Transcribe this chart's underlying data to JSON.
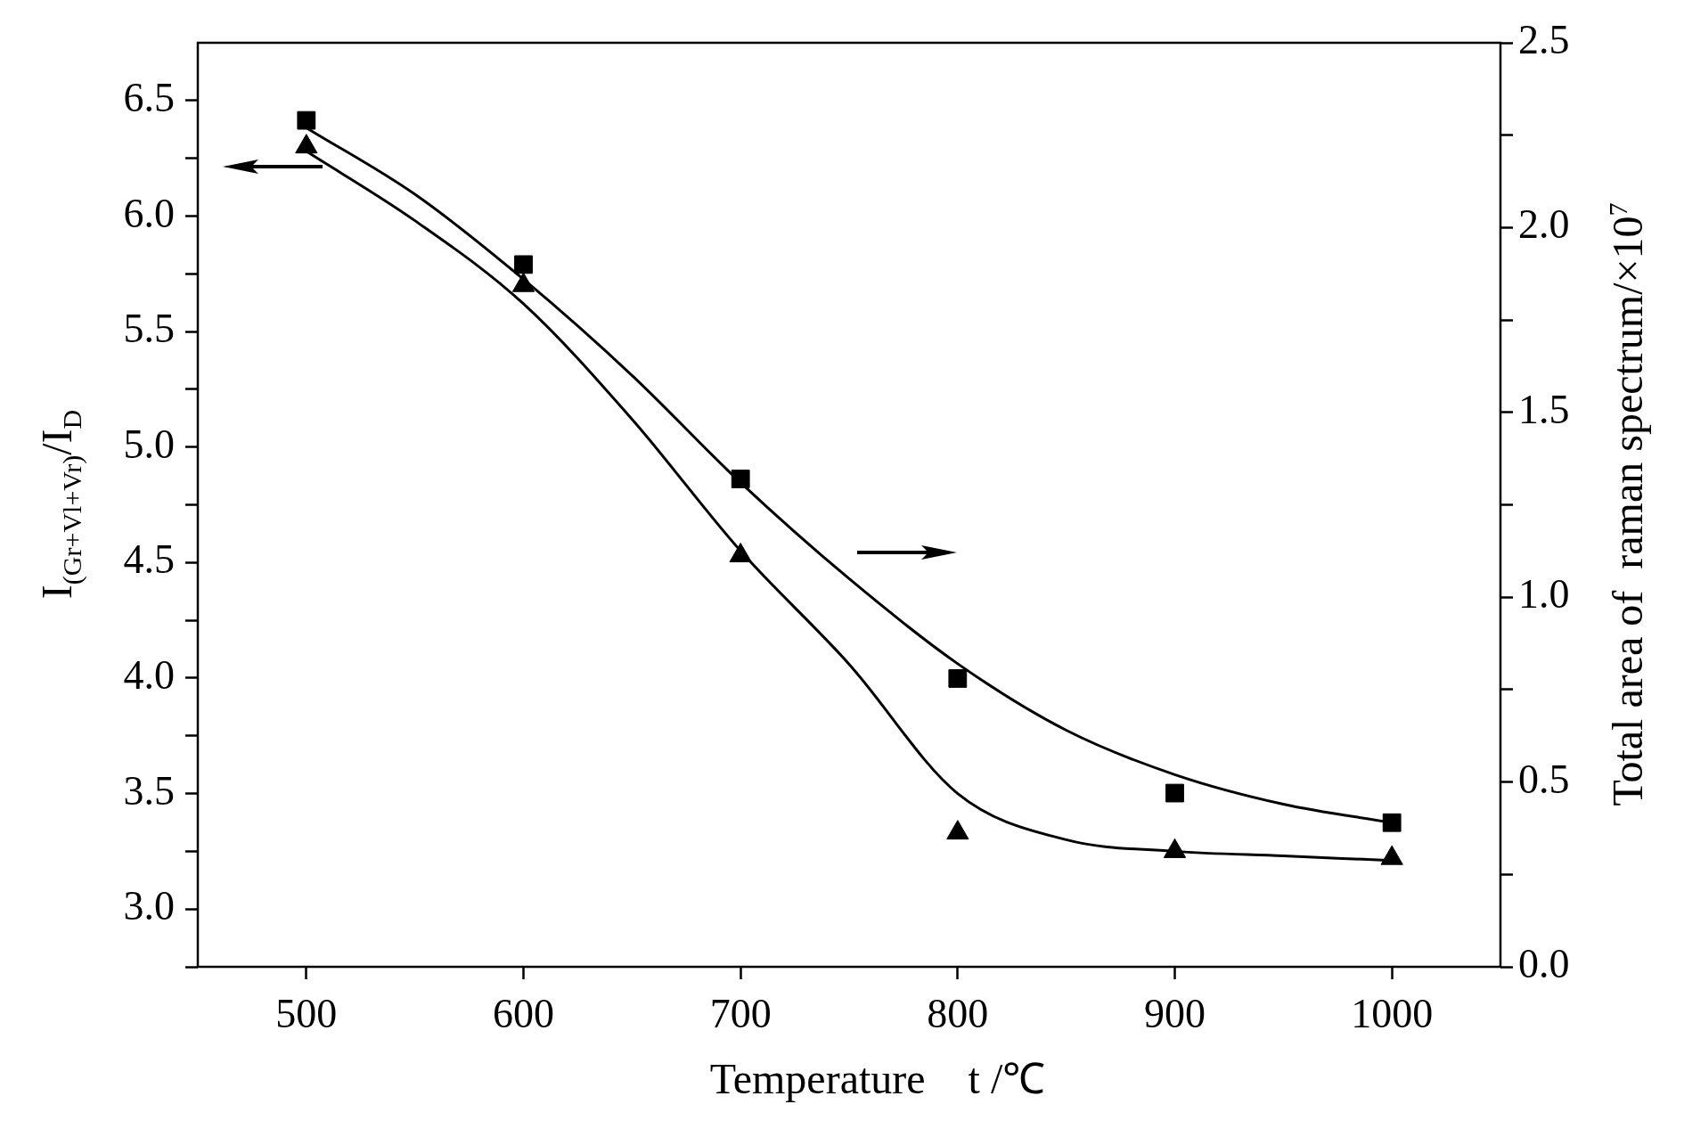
{
  "chart_data": {
    "type": "scatter",
    "xlabel": "Temperature    t /℃",
    "ylabel": "I$_{(Gr+Vl+Vr)}$/I$_{D}$",
    "y2label": "Total area of  raman spectrum/×10$^{7}$",
    "xlim": [
      450,
      1050
    ],
    "xticks": [
      500,
      600,
      700,
      800,
      900,
      1000
    ],
    "ylim": [
      2.75,
      6.75
    ],
    "yticks": [
      {
        "value": 2.75,
        "label": null
      },
      {
        "value": 3,
        "label": "3.0"
      },
      {
        "value": 3.25,
        "label": null
      },
      {
        "value": 3.5,
        "label": "3.5"
      },
      {
        "value": 3.75,
        "label": null
      },
      {
        "value": 4,
        "label": "4.0"
      },
      {
        "value": 4.25,
        "label": null
      },
      {
        "value": 4.5,
        "label": "4.5"
      },
      {
        "value": 4.75,
        "label": null
      },
      {
        "value": 5,
        "label": "5.0"
      },
      {
        "value": 5.25,
        "label": null
      },
      {
        "value": 5.5,
        "label": "5.5"
      },
      {
        "value": 5.75,
        "label": null
      },
      {
        "value": 6,
        "label": "6.0"
      },
      {
        "value": 6.25,
        "label": null
      },
      {
        "value": 6.5,
        "label": "6.5"
      }
    ],
    "y2lim": [
      0,
      2.5
    ],
    "y2ticks": [
      {
        "value": 0,
        "label": "0.0"
      },
      {
        "value": 0.25,
        "label": null
      },
      {
        "value": 0.5,
        "label": "0.5"
      },
      {
        "value": 0.75,
        "label": null
      },
      {
        "value": 1,
        "label": "1.0"
      },
      {
        "value": 1.25,
        "label": null
      },
      {
        "value": 1.5,
        "label": "1.5"
      },
      {
        "value": 1.75,
        "label": null
      },
      {
        "value": 2,
        "label": "2.0"
      },
      {
        "value": 2.25,
        "label": null
      },
      {
        "value": 2.5,
        "label": "2.5"
      }
    ],
    "series": [
      {
        "type": "scatter",
        "color": "#000000",
        "marker": "triangle",
        "x": [
          500,
          600,
          700,
          800,
          900,
          1000
        ],
        "values": [
          6.3,
          5.7,
          4.53,
          3.33,
          3.25,
          3.22
        ]
      },
      {
        "type": "scatter",
        "color": "#000000",
        "marker": "square",
        "axis": "y2",
        "x": [
          500,
          600,
          700,
          800,
          900,
          1000
        ],
        "values": [
          2.29,
          1.9,
          1.32,
          0.78,
          0.47,
          0.39
        ]
      },
      {
        "type": "line",
        "color": "#000000",
        "marker": "none",
        "x": [
          500,
          550,
          600,
          650,
          700,
          750,
          800,
          850,
          900,
          950,
          1000
        ],
        "values": [
          6.28,
          5.98,
          5.62,
          5.12,
          4.55,
          4.06,
          3.5,
          3.3,
          3.25,
          3.23,
          3.21
        ]
      },
      {
        "type": "line",
        "color": "#000000",
        "marker": "none",
        "axis": "y2",
        "x": [
          500,
          550,
          600,
          650,
          700,
          750,
          800,
          850,
          900,
          950,
          1000
        ],
        "values": [
          2.27,
          2.09,
          1.86,
          1.6,
          1.31,
          1.05,
          0.82,
          0.64,
          0.52,
          0.44,
          0.39
        ]
      }
    ]
  }
}
